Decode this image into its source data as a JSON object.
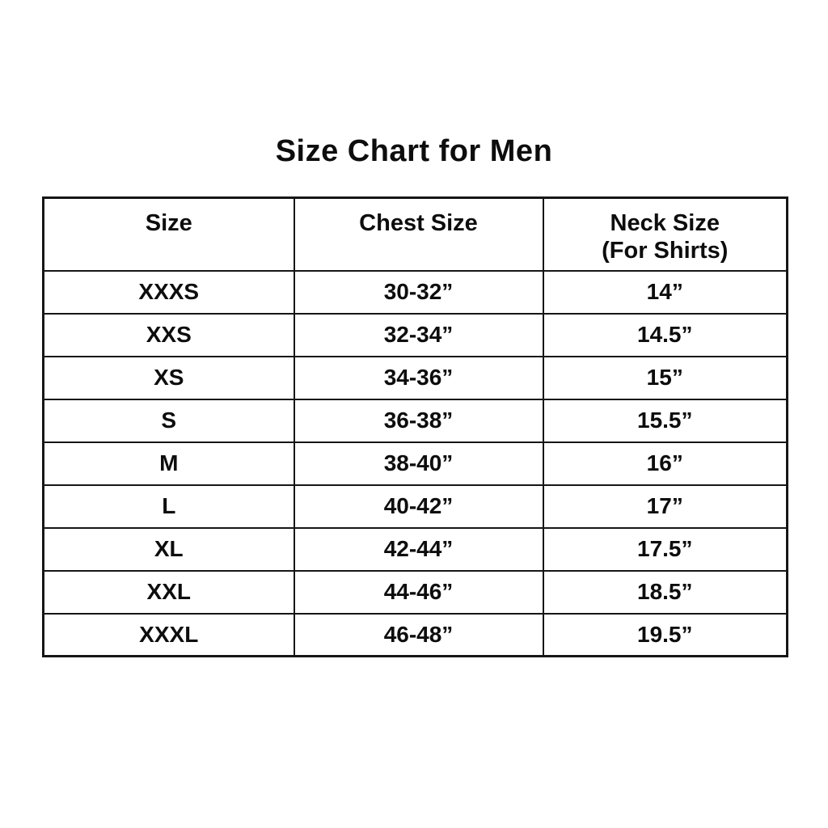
{
  "page": {
    "title": "Size Chart for Men",
    "background_color": "#ffffff",
    "text_color": "#0d0d0d",
    "border_color": "#161616"
  },
  "table": {
    "headers": {
      "size": "Size",
      "chest": "Chest Size",
      "neck_line1": "Neck Size",
      "neck_line2": "(For Shirts)"
    },
    "rows": [
      {
        "size": "XXXS",
        "chest": "30-32”",
        "neck": "14”"
      },
      {
        "size": "XXS",
        "chest": "32-34”",
        "neck": "14.5”"
      },
      {
        "size": "XS",
        "chest": "34-36”",
        "neck": "15”"
      },
      {
        "size": "S",
        "chest": "36-38”",
        "neck": "15.5”"
      },
      {
        "size": "M",
        "chest": "38-40”",
        "neck": "16”"
      },
      {
        "size": "L",
        "chest": "40-42”",
        "neck": "17”"
      },
      {
        "size": "XL",
        "chest": "42-44”",
        "neck": "17.5”"
      },
      {
        "size": "XXL",
        "chest": "44-46”",
        "neck": "18.5”"
      },
      {
        "size": "XXXL",
        "chest": "46-48”",
        "neck": "19.5”"
      }
    ]
  },
  "chart_data": {
    "type": "table",
    "title": "Size Chart for Men",
    "columns": [
      "Size",
      "Chest Size",
      "Neck Size (For Shirts)"
    ],
    "rows": [
      [
        "XXXS",
        "30-32”",
        "14”"
      ],
      [
        "XXS",
        "32-34”",
        "14.5”"
      ],
      [
        "XS",
        "34-36”",
        "15”"
      ],
      [
        "S",
        "36-38”",
        "15.5”"
      ],
      [
        "M",
        "38-40”",
        "16”"
      ],
      [
        "L",
        "40-42”",
        "17”"
      ],
      [
        "XL",
        "42-44”",
        "17.5”"
      ],
      [
        "XXL",
        "44-46”",
        "18.5”"
      ],
      [
        "XXXL",
        "46-48”",
        "19.5”"
      ]
    ],
    "layout": {
      "grid": true,
      "header_rows": 1,
      "text_align": "center",
      "units": "inches"
    }
  }
}
